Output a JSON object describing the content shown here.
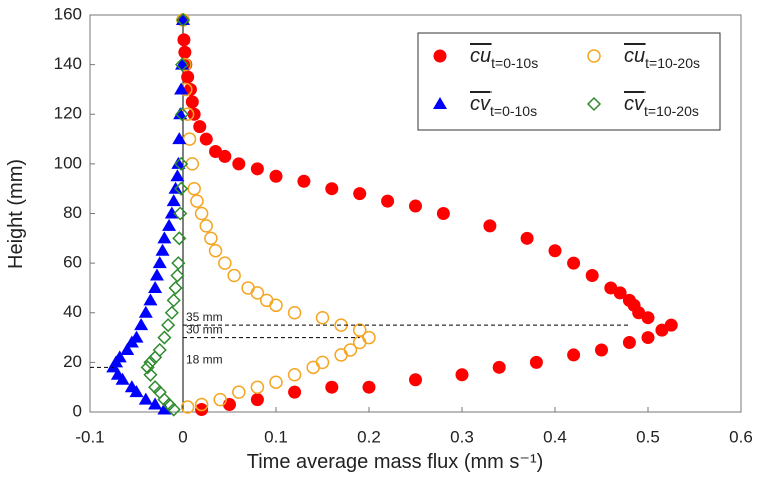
{
  "chart_data": {
    "type": "scatter",
    "x_label": "Time average mass flux (mm s⁻¹)",
    "y_label": "Height (mm)",
    "xlim": [
      -0.1,
      0.6
    ],
    "ylim": [
      0,
      160
    ],
    "xticks": [
      -0.1,
      0,
      0.1,
      0.2,
      0.3,
      0.4,
      0.5,
      0.6
    ],
    "yticks": [
      0,
      20,
      40,
      60,
      80,
      100,
      120,
      140,
      160
    ],
    "series": [
      {
        "name": "cu",
        "subscript": "t=0-10s",
        "color": "#ff0000",
        "marker": "circle",
        "filled": true,
        "x": [
          0.02,
          0.05,
          0.08,
          0.12,
          0.16,
          0.2,
          0.25,
          0.3,
          0.34,
          0.38,
          0.42,
          0.45,
          0.48,
          0.5,
          0.515,
          0.525,
          0.5,
          0.49,
          0.485,
          0.48,
          0.47,
          0.46,
          0.44,
          0.42,
          0.4,
          0.37,
          0.33,
          0.28,
          0.25,
          0.22,
          0.19,
          0.16,
          0.13,
          0.1,
          0.08,
          0.06,
          0.045,
          0.035,
          0.025,
          0.018,
          0.012,
          0.01,
          0.008,
          0.005,
          0.003,
          0.002,
          0.001,
          0
        ],
        "values": [
          1,
          3,
          5,
          8,
          10,
          10,
          13,
          15,
          18,
          20,
          23,
          25,
          28,
          30,
          33,
          35,
          38,
          40,
          43,
          45,
          48,
          50,
          55,
          60,
          65,
          70,
          75,
          80,
          83,
          85,
          88,
          90,
          93,
          95,
          98,
          100,
          103,
          105,
          110,
          115,
          120,
          125,
          130,
          135,
          140,
          145,
          150,
          158
        ]
      },
      {
        "name": "cu",
        "subscript": "t=10-20s",
        "color": "#f5a623",
        "marker": "circle",
        "filled": false,
        "x": [
          0.005,
          0.02,
          0.04,
          0.06,
          0.08,
          0.1,
          0.12,
          0.14,
          0.15,
          0.17,
          0.18,
          0.19,
          0.2,
          0.19,
          0.17,
          0.15,
          0.12,
          0.1,
          0.09,
          0.08,
          0.07,
          0.055,
          0.045,
          0.035,
          0.03,
          0.025,
          0.02,
          0.015,
          0.012,
          0.01,
          0.007,
          0.005,
          0.003,
          0.002,
          0
        ],
        "values": [
          2,
          3,
          5,
          8,
          10,
          12,
          15,
          18,
          20,
          23,
          25,
          28,
          30,
          33,
          35,
          38,
          40,
          43,
          45,
          48,
          50,
          55,
          60,
          65,
          70,
          75,
          80,
          85,
          90,
          100,
          110,
          120,
          130,
          140,
          158
        ]
      },
      {
        "name": "cv",
        "subscript": "t=0-10s",
        "color": "#0000ff",
        "marker": "triangle",
        "filled": true,
        "x": [
          -0.02,
          -0.03,
          -0.04,
          -0.05,
          -0.055,
          -0.065,
          -0.07,
          -0.075,
          -0.072,
          -0.068,
          -0.06,
          -0.055,
          -0.05,
          -0.045,
          -0.04,
          -0.035,
          -0.03,
          -0.028,
          -0.025,
          -0.022,
          -0.02,
          -0.015,
          -0.012,
          -0.01,
          -0.008,
          -0.006,
          -0.005,
          -0.004,
          -0.003,
          -0.002,
          -0.001,
          0
        ],
        "values": [
          1,
          3,
          5,
          8,
          10,
          13,
          15,
          18,
          20,
          22,
          25,
          28,
          30,
          35,
          40,
          45,
          50,
          55,
          60,
          65,
          70,
          75,
          80,
          85,
          90,
          95,
          100,
          110,
          120,
          130,
          140,
          158
        ]
      },
      {
        "name": "cv",
        "subscript": "t=10-20s",
        "color": "#2e8b2e",
        "marker": "diamond",
        "filled": false,
        "x": [
          -0.01,
          -0.015,
          -0.02,
          -0.025,
          -0.03,
          -0.035,
          -0.038,
          -0.035,
          -0.03,
          -0.025,
          -0.02,
          -0.016,
          -0.012,
          -0.01,
          -0.008,
          -0.006,
          -0.005,
          -0.004,
          -0.003,
          -0.002,
          -0.002,
          -0.001,
          -0.001,
          0
        ],
        "values": [
          1,
          3,
          5,
          8,
          10,
          15,
          18,
          20,
          22,
          25,
          30,
          35,
          40,
          45,
          50,
          55,
          60,
          70,
          80,
          90,
          100,
          120,
          140,
          158
        ]
      }
    ],
    "annotations": [
      {
        "text": "35 mm",
        "y": 35,
        "x": [
          0,
          0.48
        ]
      },
      {
        "text": "30 mm",
        "y": 30,
        "x": [
          0,
          0.19
        ]
      },
      {
        "text": "18 mm",
        "y": 18,
        "x": [
          -0.1,
          -0.075
        ]
      }
    ]
  }
}
